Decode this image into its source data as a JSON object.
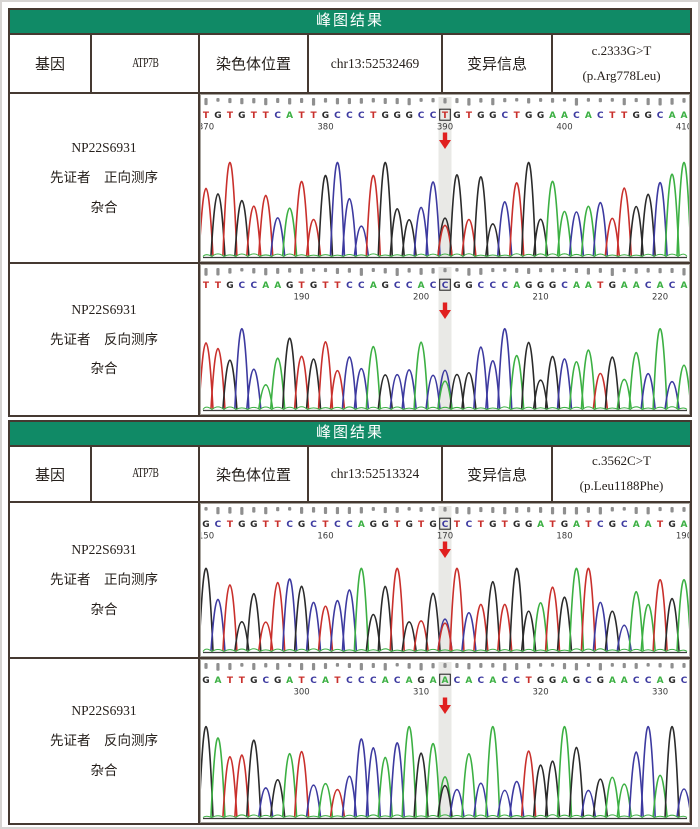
{
  "colors": {
    "header_bg": "#108a66",
    "header_text": "#ffffff",
    "table_border": "#453931",
    "base_A": "#3cb043",
    "base_C": "#3d3aa0",
    "base_G": "#2b2b2b",
    "base_T": "#c9302c",
    "quality_bar": "#8f8f8f",
    "highlight_band": "#e9e9e6",
    "arrow": "#e01f1f",
    "position_text": "#3a3a3a"
  },
  "sections": [
    {
      "title": "峰图结果",
      "info": {
        "gene_label": "基因",
        "gene_value": "ATP7B",
        "chrom_label": "染色体位置",
        "chrom_value": "chr13:52532469",
        "variant_label": "变异信息",
        "variant_line1": "c.2333G>T",
        "variant_line2": "(p.Arg778Leu)"
      },
      "chromatograms": [
        {
          "sample_id": "NP22S6931",
          "sample_desc": "先证者　正向测序",
          "zygosity": "杂合",
          "sequence": "TGTGTTCATTGCCCTGGGCCTGTGGCTGGAACACTTGGCAA",
          "boxed_index": 20,
          "boxed_base": "T",
          "position_labels": [
            {
              "text": "370",
              "index": 0
            },
            {
              "text": "380",
              "index": 10
            },
            {
              "text": "390",
              "index": 20
            },
            {
              "text": "400",
              "index": 30
            },
            {
              "text": "410",
              "index": 40
            }
          ],
          "variant_peaks": [
            {
              "base": "G",
              "h": 0.42
            },
            {
              "base": "T",
              "h": 0.34
            }
          ]
        },
        {
          "sample_id": "NP22S6931",
          "sample_desc": "先证者　反向测序",
          "zygosity": "杂合",
          "sequence": "TTGCCAAGTGTTCCAGCCACCGGCCCAGGGCAATGAACACA",
          "boxed_index": 20,
          "boxed_base": "C",
          "position_labels": [
            {
              "text": "190",
              "index": 8
            },
            {
              "text": "200",
              "index": 18
            },
            {
              "text": "210",
              "index": 28
            },
            {
              "text": "220",
              "index": 38
            }
          ],
          "variant_peaks": [
            {
              "base": "C",
              "h": 0.5
            },
            {
              "base": "A",
              "h": 0.36
            }
          ]
        }
      ]
    },
    {
      "title": "峰图结果",
      "info": {
        "gene_label": "基因",
        "gene_value": "ATP7B",
        "chrom_label": "染色体位置",
        "chrom_value": "chr13:52513324",
        "variant_label": "变异信息",
        "variant_line1": "c.3562C>T",
        "variant_line2": "(p.Leu1188Phe)"
      },
      "chromatograms": [
        {
          "sample_id": "NP22S6931",
          "sample_desc": "先证者　正向测序",
          "zygosity": "杂合",
          "sequence": "GCTGGTTCGCTCCAGGTGTGCTCTGTGGATGATCGCAATGA",
          "boxed_index": 20,
          "boxed_base": "C",
          "position_labels": [
            {
              "text": "150",
              "index": 0
            },
            {
              "text": "160",
              "index": 10
            },
            {
              "text": "170",
              "index": 20
            },
            {
              "text": "180",
              "index": 30
            },
            {
              "text": "190",
              "index": 40
            }
          ],
          "variant_peaks": [
            {
              "base": "C",
              "h": 0.4
            },
            {
              "base": "T",
              "h": 0.35
            }
          ]
        },
        {
          "sample_id": "NP22S6931",
          "sample_desc": "先证者　反向测序",
          "zygosity": "杂合",
          "sequence": "GATTGCGATCATCCCACAGAACACACCTGGAGCGAACCAGC",
          "boxed_index": 20,
          "boxed_base": "A",
          "position_labels": [
            {
              "text": "300",
              "index": 8
            },
            {
              "text": "310",
              "index": 18
            },
            {
              "text": "320",
              "index": 28
            },
            {
              "text": "330",
              "index": 38
            }
          ],
          "variant_peaks": [
            {
              "base": "A",
              "h": 0.46
            },
            {
              "base": "G",
              "h": 0.36
            }
          ]
        }
      ]
    }
  ]
}
